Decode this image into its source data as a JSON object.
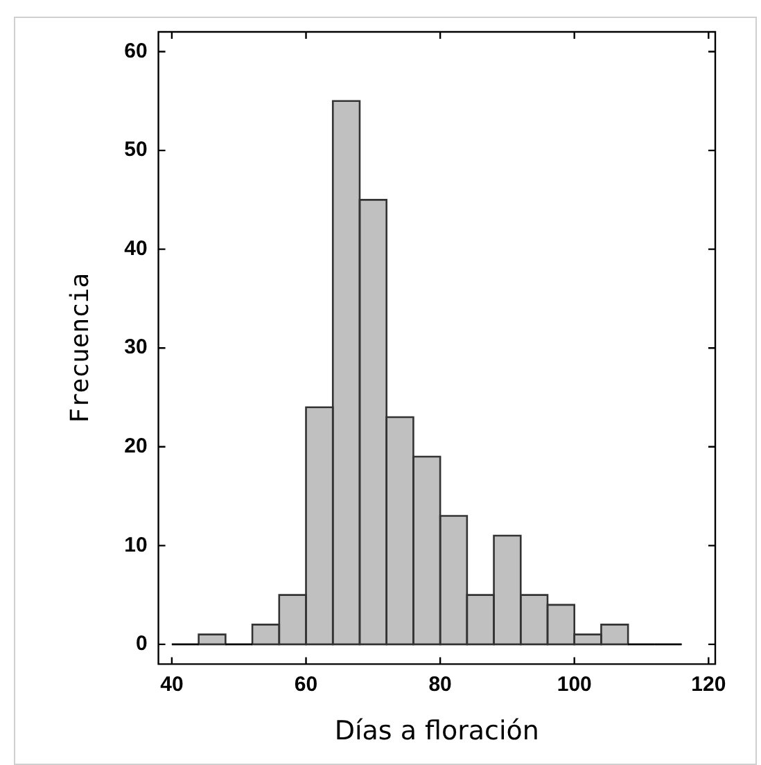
{
  "chart_data": {
    "type": "histogram",
    "xlabel": "Días a floración",
    "ylabel": "Frecuencia",
    "bins": [
      40,
      44,
      48,
      52,
      56,
      60,
      64,
      68,
      72,
      76,
      80,
      84,
      88,
      92,
      96,
      100,
      104,
      108,
      112,
      116
    ],
    "values": [
      0,
      1,
      0,
      2,
      5,
      24,
      55,
      45,
      23,
      19,
      13,
      5,
      11,
      5,
      4,
      1,
      2,
      0,
      0
    ],
    "color": "#c0c0c0",
    "xlim": [
      38,
      121
    ],
    "xticks": [
      40,
      60,
      80,
      100,
      120
    ],
    "ylim": [
      -2,
      62
    ],
    "yticks": [
      0,
      10,
      20,
      30,
      40,
      50,
      60
    ],
    "grid": false,
    "legend": false
  }
}
